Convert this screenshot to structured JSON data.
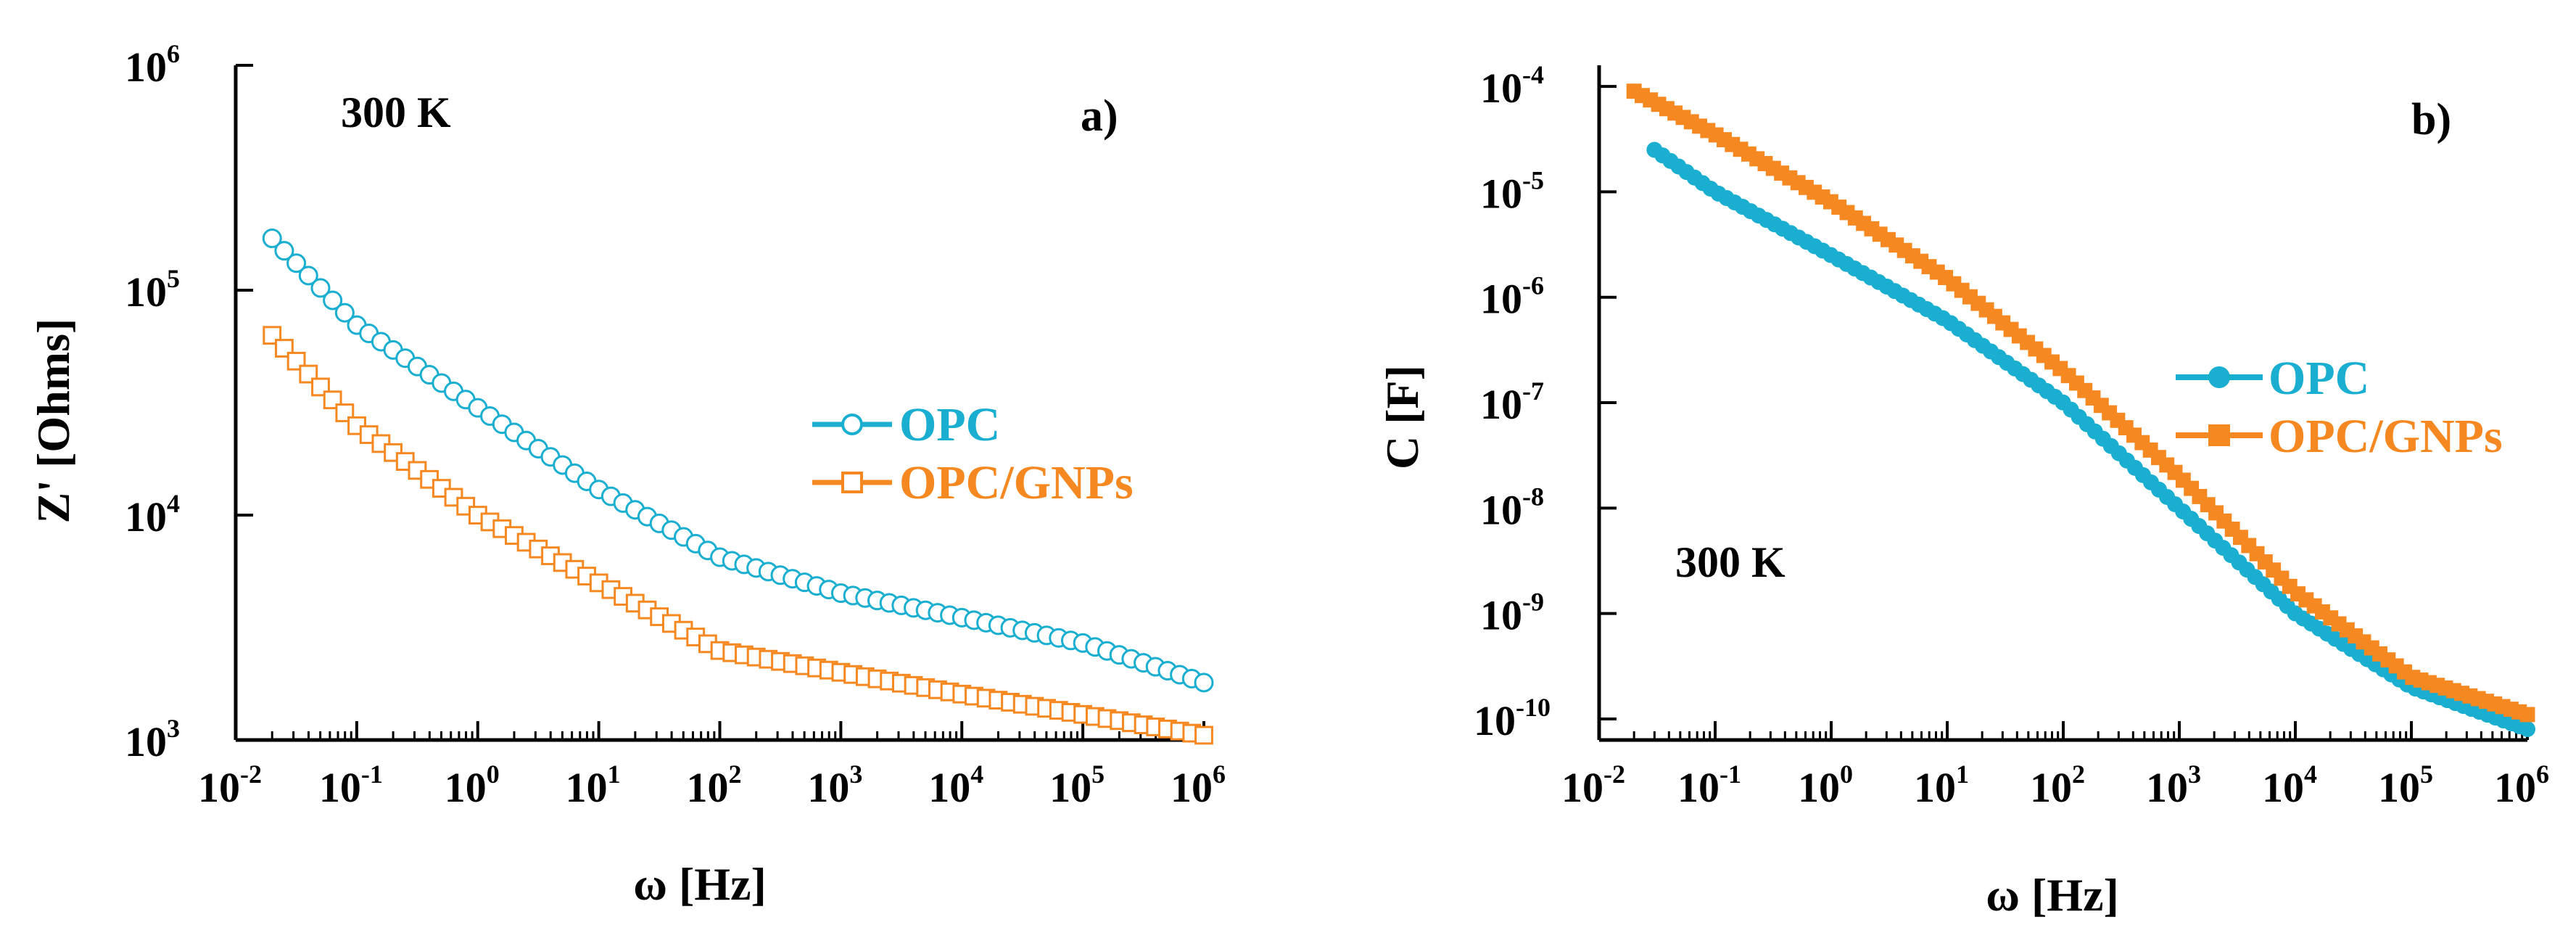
{
  "chart_data": [
    {
      "panel": "a)",
      "type": "line",
      "scale": {
        "x": "log",
        "y": "log"
      },
      "xlim": [
        0.01,
        1000000
      ],
      "ylim": [
        1000,
        1000000
      ],
      "xlabel": "ω [Hz]",
      "ylabel": "Z' [Ohms]",
      "annotation": "300 K",
      "x_ticks": [
        {
          "base": "10",
          "exp": "-2"
        },
        {
          "base": "10",
          "exp": "-1"
        },
        {
          "base": "10",
          "exp": "0"
        },
        {
          "base": "10",
          "exp": "1"
        },
        {
          "base": "10",
          "exp": "2"
        },
        {
          "base": "10",
          "exp": "3"
        },
        {
          "base": "10",
          "exp": "4"
        },
        {
          "base": "10",
          "exp": "5"
        },
        {
          "base": "10",
          "exp": "6"
        }
      ],
      "y_ticks": [
        {
          "base": "10",
          "exp": "3"
        },
        {
          "base": "10",
          "exp": "4"
        },
        {
          "base": "10",
          "exp": "5"
        },
        {
          "base": "10",
          "exp": "6"
        }
      ],
      "series": [
        {
          "name": "OPC",
          "color": "#1aaed0",
          "marker": "open-circle",
          "x": [
            0.02,
            0.1,
            1,
            10,
            100,
            1000,
            10000,
            100000,
            1000000
          ],
          "y": [
            170000,
            70000,
            30000,
            13000,
            6500,
            4500,
            3500,
            2700,
            1800
          ]
        },
        {
          "name": "OPC/GNPs",
          "color": "#f58820",
          "marker": "open-square",
          "x": [
            0.02,
            0.1,
            1,
            10,
            100,
            1000,
            10000,
            100000,
            1000000
          ],
          "y": [
            63000,
            25000,
            10000,
            5000,
            2500,
            2000,
            1600,
            1300,
            1050
          ]
        }
      ]
    },
    {
      "panel": "b)",
      "type": "line",
      "scale": {
        "x": "log",
        "y": "log"
      },
      "xlim": [
        0.01,
        1000000
      ],
      "ylim_log10": [
        -10.2,
        -3.8
      ],
      "xlabel": "ω [Hz]",
      "ylabel": "C [F]",
      "annotation": "300 K",
      "x_ticks": [
        {
          "base": "10",
          "exp": "-2"
        },
        {
          "base": "10",
          "exp": "-1"
        },
        {
          "base": "10",
          "exp": "0"
        },
        {
          "base": "10",
          "exp": "1"
        },
        {
          "base": "10",
          "exp": "2"
        },
        {
          "base": "10",
          "exp": "3"
        },
        {
          "base": "10",
          "exp": "4"
        },
        {
          "base": "10",
          "exp": "5"
        },
        {
          "base": "10",
          "exp": "6"
        }
      ],
      "y_ticks": [
        {
          "base": "10",
          "exp": "-10"
        },
        {
          "base": "10",
          "exp": "-9"
        },
        {
          "base": "10",
          "exp": "-8"
        },
        {
          "base": "10",
          "exp": "-7"
        },
        {
          "base": "10",
          "exp": "-6"
        },
        {
          "base": "10",
          "exp": "-5"
        },
        {
          "base": "10",
          "exp": "-4"
        }
      ],
      "series": [
        {
          "name": "OPC",
          "color": "#1aaed0",
          "marker": "filled-circle",
          "x": [
            0.03,
            0.1,
            1,
            10,
            100,
            1000,
            10000,
            100000,
            1000000
          ],
          "y": [
            2.5e-05,
            1e-05,
            2.5e-06,
            6e-07,
            1e-07,
            1e-08,
            1e-09,
            2e-10,
            8e-11
          ]
        },
        {
          "name": "OPC/GNPs",
          "color": "#f58820",
          "marker": "filled-square",
          "x": [
            0.02,
            0.1,
            1,
            10,
            100,
            1000,
            10000,
            100000,
            1000000
          ],
          "y": [
            9e-05,
            3.5e-05,
            8e-06,
            1.5e-06,
            2e-07,
            2e-08,
            1.6e-09,
            2.5e-10,
            1.1e-10
          ]
        }
      ]
    }
  ]
}
